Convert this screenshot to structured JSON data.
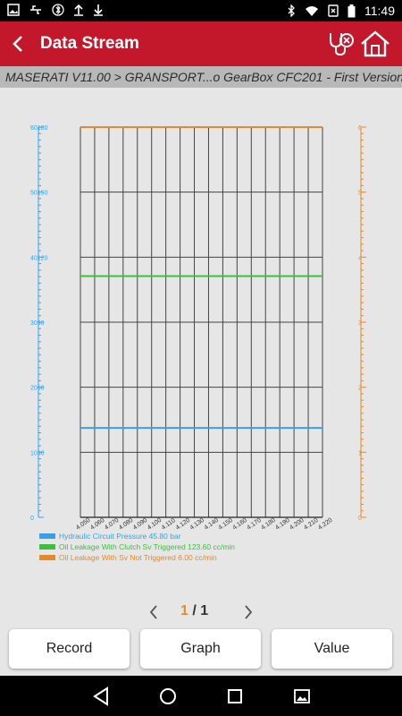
{
  "status_bar": {
    "time": "11:49",
    "left_icons": [
      "image-icon",
      "usb-icon",
      "bluetooth-icon",
      "upload-icon",
      "download-icon"
    ],
    "right_icons": [
      "bluetooth-icon",
      "wifi-icon",
      "no-sim-icon",
      "battery-icon"
    ]
  },
  "app_bar": {
    "title": "Data Stream",
    "back_icon": "chevron-left-icon",
    "diag_icon": "stethoscope-icon",
    "home_icon": "home-icon",
    "color": "#c3172b"
  },
  "breadcrumb": "MASERATI V11.00 > GRANSPORT...o GearBox CFC201 - First Version",
  "chart_data": {
    "type": "line",
    "x": [
      "4.050",
      "4.060",
      "4.070",
      "4.080",
      "4.090",
      "4.100",
      "4.110",
      "4.120",
      "4.130",
      "4.140",
      "4.150",
      "4.160",
      "4.170",
      "4.180",
      "4.190",
      "4.200",
      "4.210",
      "4.220"
    ],
    "left_axis": {
      "ylim": [
        0,
        60180
      ],
      "ticks": [
        "0",
        "1030",
        "2060",
        "3090",
        "40120",
        "50150",
        "60180"
      ],
      "color": "#3aa0e6"
    },
    "right_axis": {
      "ylim": [
        0,
        6
      ],
      "ticks": [
        "0",
        "1",
        "2",
        "3",
        "4",
        "5",
        "6"
      ],
      "color": "#e38a2c"
    },
    "series": [
      {
        "name": "Hydraulic Circuit Pressure 45.80 bar",
        "color": "#3aa0e6",
        "value": 45.8,
        "axis": "left"
      },
      {
        "name": "Oil Leakage With Clutch Sv Triggered 123.60 cc/min",
        "color": "#3fbf3f",
        "value": 123.6,
        "axis": "left"
      },
      {
        "name": "Oil Leakage With Sv Not Triggered 6.00 cc/min",
        "color": "#e38a2c",
        "value": 6.0,
        "axis": "right"
      }
    ],
    "grid": true
  },
  "pager": {
    "current": "1",
    "separator": "/",
    "total": "1"
  },
  "buttons": {
    "record": "Record",
    "graph": "Graph",
    "value": "Value"
  },
  "nav_bar": [
    "back-icon",
    "home-icon",
    "recents-icon",
    "screenshot-icon"
  ]
}
